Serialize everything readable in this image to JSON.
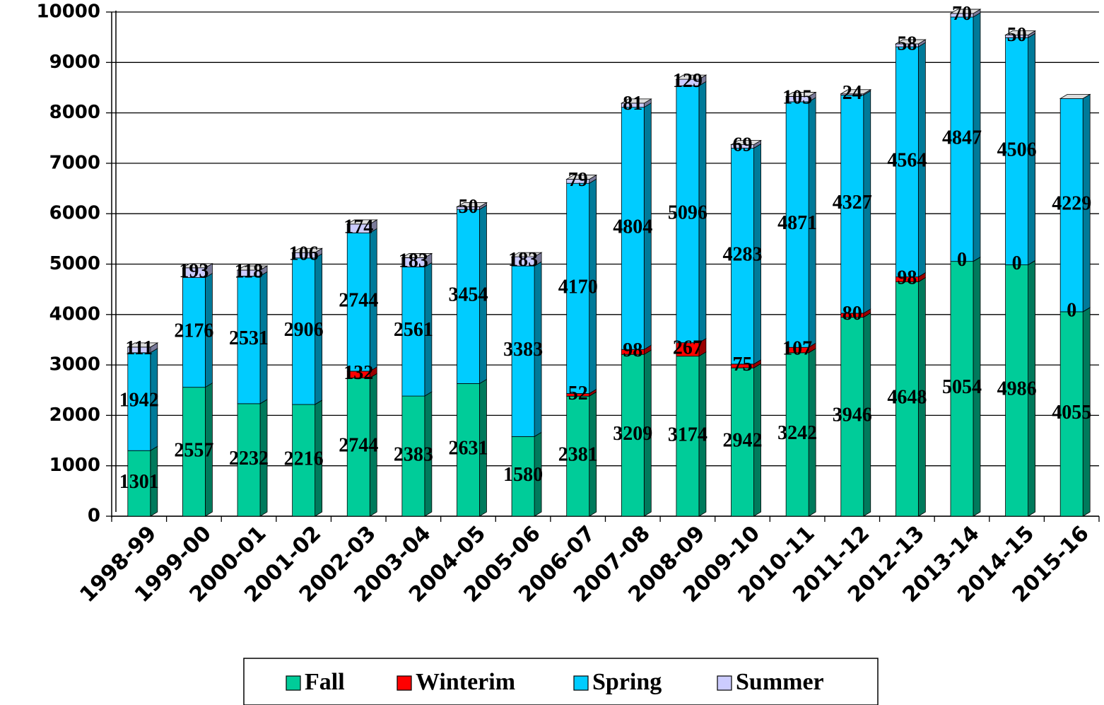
{
  "chart_data": {
    "type": "bar",
    "stacked": true,
    "categories": [
      "1998-99",
      "1999-00",
      "2000-01",
      "2001-02",
      "2002-03",
      "2003-04",
      "2004-05",
      "2005-06",
      "2006-07",
      "2007-08",
      "2008-09",
      "2009-10",
      "2010-11",
      "2011-12",
      "2012-13",
      "2013-14",
      "2014-15",
      "2015-16"
    ],
    "series": [
      {
        "name": "Fall",
        "color": "#00cc99",
        "values": [
          1301,
          2557,
          2232,
          2216,
          2744,
          2383,
          2631,
          1580,
          2381,
          3209,
          3174,
          2942,
          3242,
          3946,
          4648,
          5054,
          4986,
          4055
        ]
      },
      {
        "name": "Winterim",
        "color": "#ff0000",
        "values": [
          null,
          null,
          null,
          null,
          132,
          null,
          null,
          null,
          52,
          98,
          267,
          75,
          107,
          80,
          98,
          0,
          0,
          0
        ]
      },
      {
        "name": "Spring",
        "color": "#00ccff",
        "values": [
          1942,
          2176,
          2531,
          2906,
          2744,
          2561,
          3454,
          3383,
          4170,
          4804,
          5096,
          4283,
          4871,
          4327,
          4564,
          4847,
          4506,
          4229
        ]
      },
      {
        "name": "Summer",
        "color": "#ccccff",
        "values": [
          111,
          193,
          118,
          106,
          174,
          183,
          50,
          183,
          79,
          81,
          129,
          69,
          105,
          24,
          58,
          70,
          50,
          null
        ]
      }
    ],
    "ylim": [
      0,
      10000
    ],
    "yticks": [
      0,
      1000,
      2000,
      3000,
      4000,
      5000,
      6000,
      7000,
      8000,
      9000,
      10000
    ],
    "grid": true,
    "legend": "bottom"
  }
}
